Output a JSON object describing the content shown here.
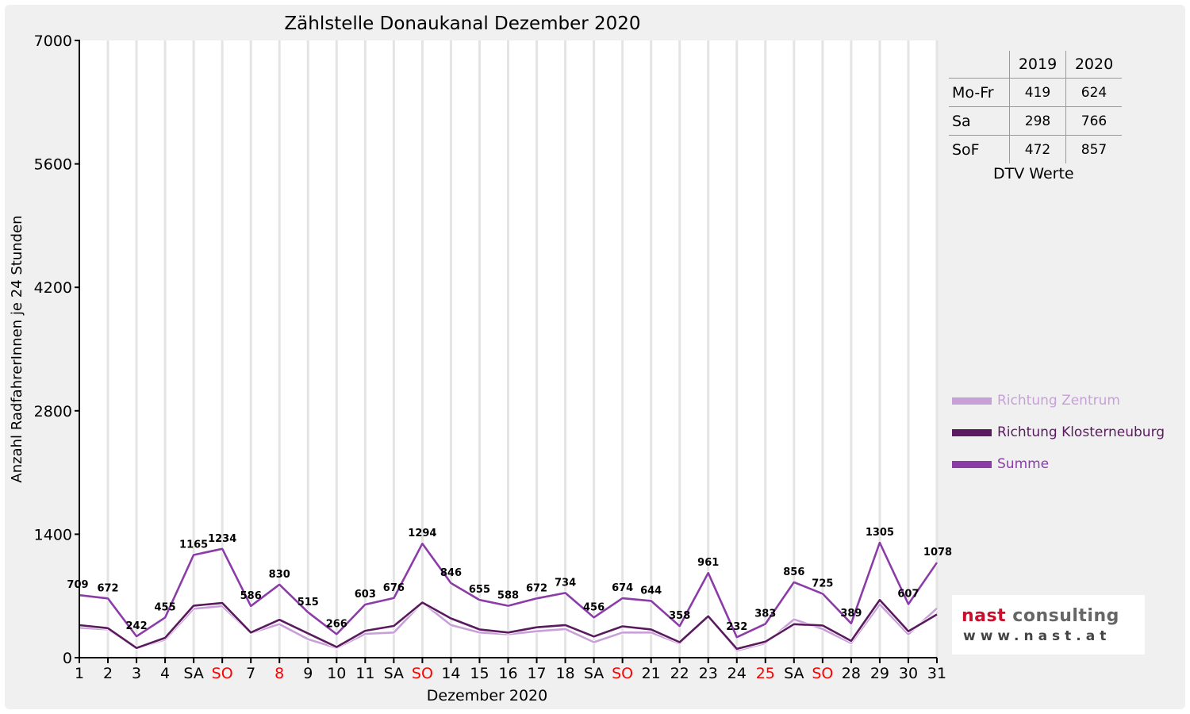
{
  "chart_data": {
    "type": "line",
    "title": "Zählstelle Donaukanal Dezember 2020",
    "xlabel": "Dezember 2020",
    "ylabel": "Anzahl RadfahrerInnen je 24 Stunden",
    "ylim": [
      0,
      7000
    ],
    "yticks": [
      0,
      1400,
      2800,
      4200,
      5600,
      7000
    ],
    "grid": "vertical",
    "legend_position": "right",
    "categories": [
      "1",
      "2",
      "3",
      "4",
      "SA",
      "SO",
      "7",
      "8",
      "9",
      "10",
      "11",
      "SA",
      "SO",
      "14",
      "15",
      "16",
      "17",
      "18",
      "SA",
      "SO",
      "21",
      "22",
      "23",
      "24",
      "25",
      "SA",
      "SO",
      "28",
      "29",
      "30",
      "31"
    ],
    "highlighted_categories": [
      5,
      7,
      12,
      19,
      24,
      26
    ],
    "series": [
      {
        "name": "Richtung Zentrum",
        "color": "#c8a0d8",
        "values": [
          340,
          320,
          105,
          205,
          555,
          585,
          280,
          380,
          210,
          110,
          270,
          285,
          625,
          370,
          285,
          265,
          300,
          325,
          175,
          285,
          285,
          160,
          475,
          80,
          165,
          435,
          325,
          165,
          605,
          265,
          560
        ]
      },
      {
        "name": "Richtung Klosterneuburg",
        "color": "#5a1a5e",
        "values": [
          369,
          335,
          110,
          225,
          590,
          620,
          285,
          430,
          275,
          121,
          305,
          360,
          625,
          445,
          320,
          285,
          345,
          370,
          240,
          355,
          320,
          175,
          470,
          100,
          182,
          380,
          365,
          190,
          655,
          300,
          490
        ]
      },
      {
        "name": "Summe",
        "color": "#8b3ca8",
        "values": [
          709,
          672,
          242,
          455,
          1165,
          1234,
          586,
          830,
          515,
          266,
          603,
          676,
          1294,
          846,
          655,
          588,
          672,
          734,
          456,
          674,
          644,
          358,
          961,
          232,
          383,
          856,
          725,
          389,
          1305,
          607,
          1078
        ]
      }
    ],
    "data_labels": [
      "709",
      "672",
      "242",
      "455",
      "1165",
      "1234",
      "586",
      "830",
      "515",
      "266",
      "603",
      "676",
      "1294",
      "846",
      "655",
      "588",
      "672",
      "734",
      "456",
      "674",
      "644",
      "358",
      "961",
      "232",
      "383",
      "856",
      "725",
      "389",
      "1305",
      "607",
      "1078"
    ]
  },
  "dtv": {
    "headers": [
      "",
      "2019",
      "2020"
    ],
    "rows": [
      {
        "label": "Mo-Fr",
        "v2019": "419",
        "v2020": "624"
      },
      {
        "label": "Sa",
        "v2019": "298",
        "v2020": "766"
      },
      {
        "label": "SoF",
        "v2019": "472",
        "v2020": "857"
      }
    ],
    "caption": "DTV Werte"
  },
  "logo": {
    "name_part1": "nast",
    "name_part2": "consulting",
    "url": "www.nast.at",
    "colors": {
      "name_part1": "#c8102e",
      "name_part2": "#666666"
    }
  },
  "colors": {
    "holiday_label": "#ff0000",
    "plot_background": "#ffffff",
    "frame_background": "#f0f0f0"
  }
}
